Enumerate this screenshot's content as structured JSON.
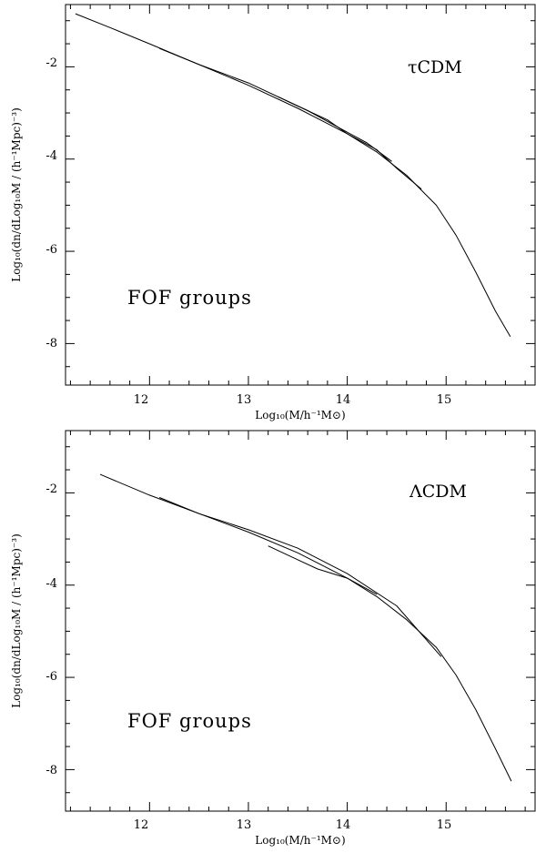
{
  "chart_data": [
    {
      "type": "line",
      "panel_label": "τCDM",
      "annotation": "FOF groups",
      "xlabel": "Log₁₀(M/h⁻¹M⊙)",
      "ylabel": "Log₁₀(dn/dLog₁₀M / (h⁻¹Mpc)⁻³)",
      "xlim": [
        11.15,
        15.9
      ],
      "ylim": [
        -8.9,
        -0.65
      ],
      "xticks": [
        12,
        13,
        14,
        15
      ],
      "yticks": [
        -2,
        -4,
        -6,
        -8
      ],
      "grid": false,
      "series": [
        {
          "x": [
            11.25,
            11.6,
            12.0,
            12.5,
            13.0,
            13.5,
            14.0,
            14.3,
            14.6,
            14.9,
            15.1,
            15.3,
            15.5,
            15.65
          ],
          "values": [
            -0.85,
            -1.15,
            -1.5,
            -1.95,
            -2.4,
            -2.9,
            -3.45,
            -3.85,
            -4.35,
            -5.0,
            -5.65,
            -6.45,
            -7.3,
            -7.85
          ]
        },
        {
          "x": [
            12.1,
            12.5,
            13.0,
            13.5,
            13.8,
            14.0,
            14.3,
            14.5,
            14.75
          ],
          "values": [
            -1.6,
            -1.95,
            -2.35,
            -2.85,
            -3.15,
            -3.45,
            -3.8,
            -4.2,
            -4.65
          ]
        },
        {
          "x": [
            13.3,
            13.6,
            13.9,
            14.2,
            14.45
          ],
          "values": [
            -2.65,
            -2.95,
            -3.3,
            -3.65,
            -4.05
          ]
        }
      ]
    },
    {
      "type": "line",
      "panel_label": "ΛCDM",
      "annotation": "FOF groups",
      "xlabel": "Log₁₀(M/h⁻¹M⊙)",
      "ylabel": "Log₁₀(dn/dLog₁₀M / (h⁻¹Mpc)⁻³)",
      "xlim": [
        11.15,
        15.9
      ],
      "ylim": [
        -8.9,
        -0.65
      ],
      "xticks": [
        12,
        13,
        14,
        15
      ],
      "yticks": [
        -2,
        -4,
        -6,
        -8
      ],
      "grid": false,
      "series": [
        {
          "x": [
            11.5,
            12.0,
            12.5,
            13.0,
            13.5,
            14.0,
            14.3,
            14.6,
            14.9,
            15.1,
            15.3,
            15.5,
            15.66
          ],
          "values": [
            -1.6,
            -2.05,
            -2.45,
            -2.85,
            -3.3,
            -3.85,
            -4.25,
            -4.75,
            -5.35,
            -5.95,
            -6.7,
            -7.55,
            -8.25
          ]
        },
        {
          "x": [
            12.1,
            12.5,
            13.0,
            13.5,
            14.0,
            14.5,
            14.95
          ],
          "values": [
            -2.1,
            -2.45,
            -2.8,
            -3.2,
            -3.75,
            -4.45,
            -5.55
          ]
        },
        {
          "x": [
            13.2,
            13.5,
            13.7,
            14.0,
            14.3
          ],
          "values": [
            -3.15,
            -3.45,
            -3.65,
            -3.85,
            -4.2
          ]
        }
      ]
    }
  ]
}
